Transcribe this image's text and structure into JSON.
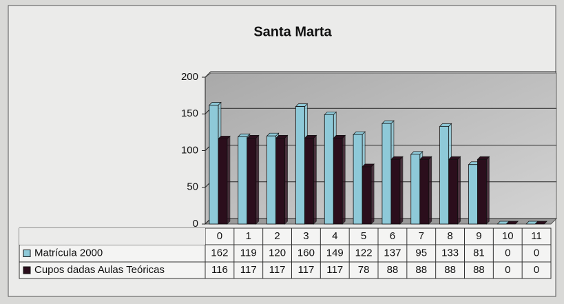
{
  "chart_data": {
    "type": "bar",
    "title": "Santa Marta",
    "categories": [
      "0",
      "1",
      "2",
      "3",
      "4",
      "5",
      "6",
      "7",
      "8",
      "9",
      "10",
      "11"
    ],
    "series": [
      {
        "name": "Matrícula 2000",
        "color": "#8ec9d8",
        "values": [
          162,
          119,
          120,
          160,
          149,
          122,
          137,
          95,
          133,
          81,
          0,
          0
        ]
      },
      {
        "name": "Cupos dadas Aulas Teóricas",
        "color": "#2b0e1c",
        "values": [
          116,
          117,
          117,
          117,
          117,
          78,
          88,
          88,
          88,
          88,
          0,
          0
        ]
      }
    ],
    "ylim": [
      0,
      200
    ],
    "yticks": [
      0,
      50,
      100,
      150,
      200
    ],
    "grid": true
  }
}
